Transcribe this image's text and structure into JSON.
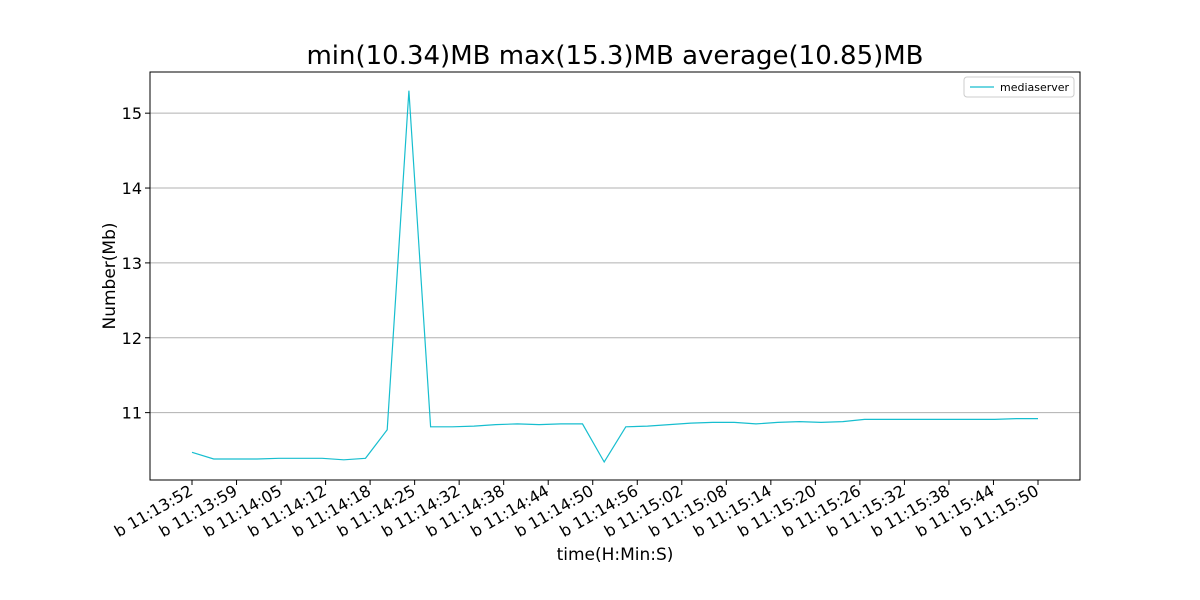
{
  "chart_data": {
    "type": "line",
    "title": "min(10.34)MB max(15.3)MB average(10.85)MB",
    "xlabel": "time(H:Min:S)",
    "ylabel": "Number(Mb)",
    "ylim": [
      10.1,
      15.55
    ],
    "yticks": [
      11,
      12,
      13,
      14,
      15
    ],
    "grid": "horizontal",
    "legend_position": "top-right",
    "colors": {
      "series": "#17becf",
      "grid": "#b0b0b0",
      "axis": "#000000"
    },
    "x_tick_labels": [
      "b 11:13:52",
      "b 11:13:59",
      "b 11:14:05",
      "b 11:14:12",
      "b 11:14:18",
      "b 11:14:25",
      "b 11:14:32",
      "b 11:14:38",
      "b 11:14:44",
      "b 11:14:50",
      "b 11:14:56",
      "b 11:15:02",
      "b 11:15:08",
      "b 11:15:14",
      "b 11:15:20",
      "b 11:15:26",
      "b 11:15:32",
      "b 11:15:38",
      "b 11:15:44",
      "b 11:15:50"
    ],
    "series": [
      {
        "name": "mediaserver",
        "values": [
          10.47,
          10.38,
          10.38,
          10.38,
          10.39,
          10.39,
          10.39,
          10.37,
          10.39,
          10.77,
          15.3,
          10.81,
          10.81,
          10.82,
          10.84,
          10.85,
          10.84,
          10.85,
          10.85,
          10.34,
          10.81,
          10.82,
          10.84,
          10.86,
          10.87,
          10.87,
          10.85,
          10.87,
          10.88,
          10.87,
          10.88,
          10.91,
          10.91,
          10.91,
          10.91,
          10.91,
          10.91,
          10.91,
          10.92,
          10.92
        ]
      }
    ]
  }
}
